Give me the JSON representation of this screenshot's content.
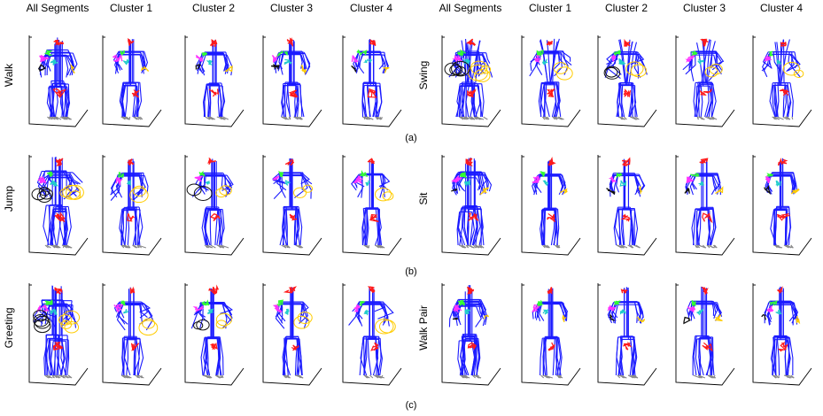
{
  "headers": [
    "All Segments",
    "Cluster 1",
    "Cluster 2",
    "Cluster 3",
    "Cluster 4"
  ],
  "rows": [
    {
      "subfigure": "(a)",
      "left_label": "Walk",
      "right_label": "Swing"
    },
    {
      "subfigure": "(b)",
      "left_label": "Jump",
      "right_label": "Sit"
    },
    {
      "subfigure": "(c)",
      "left_label": "Greeting",
      "right_label": "Walk Pair"
    }
  ],
  "colors": {
    "skeleton": "#1a1aff",
    "head": "#ff1a1a",
    "left_hand": "#ffcc00",
    "right_hand": "#111111",
    "elbow_a": "#ff33ff",
    "elbow_b": "#33ff33",
    "shoulder": "#22cccc",
    "feet": "#888888",
    "axis": "#000000"
  }
}
